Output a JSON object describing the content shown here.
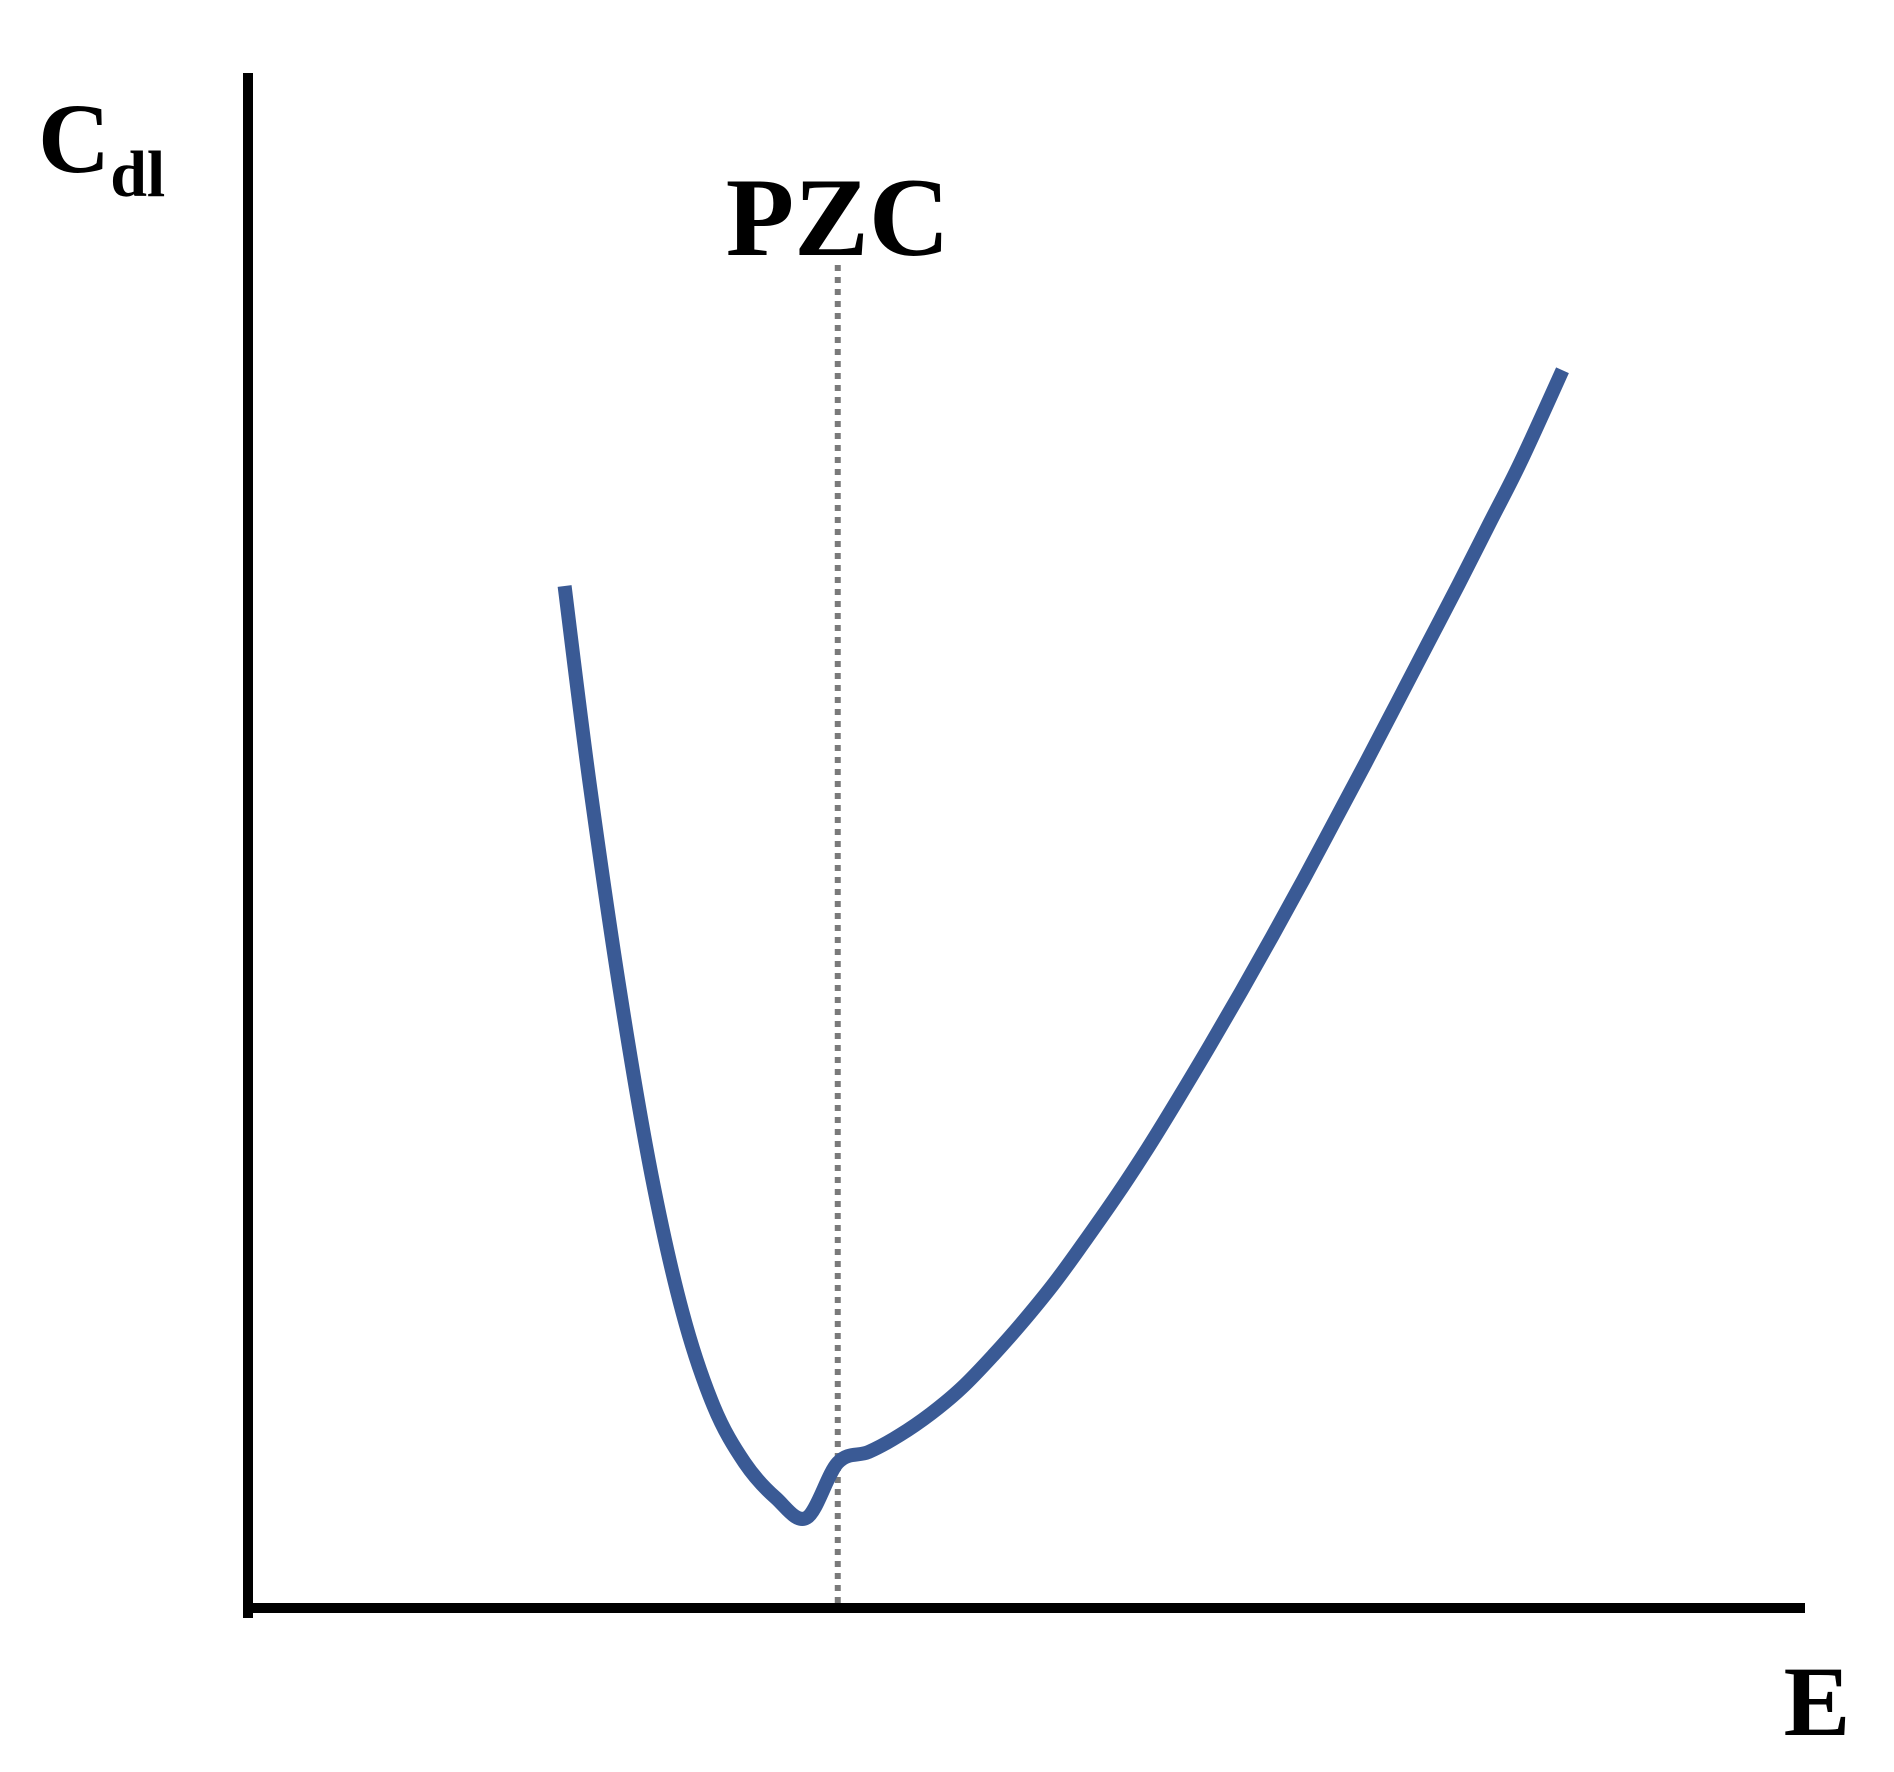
{
  "chart_data": {
    "type": "line",
    "title": "",
    "ylabel": {
      "main": "C",
      "subscript": "dl"
    },
    "xlabel": "E",
    "xlim": [
      0,
      1
    ],
    "ylim": [
      0,
      1
    ],
    "grid": false,
    "legend": "none",
    "annotations": [
      {
        "label": "PZC",
        "x": 0.38,
        "style": "dotted-vertical-line"
      }
    ],
    "series": [
      {
        "color": "#3a5a95",
        "x": [
          0.204,
          0.22,
          0.24,
          0.26,
          0.28,
          0.3,
          0.32,
          0.34,
          0.36,
          0.38,
          0.4,
          0.42,
          0.44,
          0.46,
          0.48,
          0.5,
          0.52,
          0.54,
          0.56,
          0.58,
          0.6,
          0.62,
          0.64,
          0.66,
          0.68,
          0.7,
          0.72,
          0.74,
          0.76,
          0.78,
          0.8,
          0.82,
          0.847
        ],
        "y": [
          0.668,
          0.54,
          0.401,
          0.283,
          0.193,
          0.132,
          0.095,
          0.072,
          0.059,
          0.095,
          0.102,
          0.113,
          0.127,
          0.144,
          0.165,
          0.188,
          0.213,
          0.241,
          0.27,
          0.301,
          0.334,
          0.368,
          0.403,
          0.439,
          0.476,
          0.514,
          0.552,
          0.591,
          0.63,
          0.669,
          0.709,
          0.749,
          0.809
        ]
      }
    ],
    "colors": {
      "curve": "#3a5a95",
      "axes": "#000000",
      "pzc_line": "#7a7a7a"
    }
  }
}
